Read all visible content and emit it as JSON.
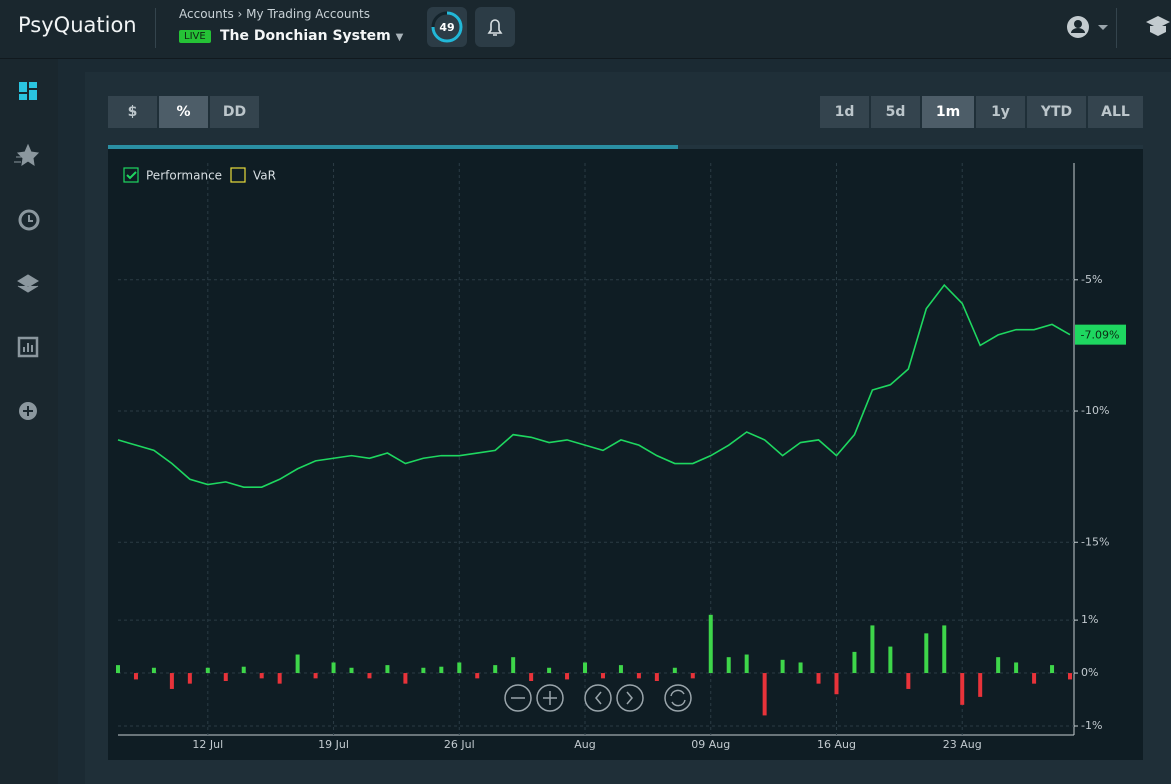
{
  "header": {
    "brand": "PsyQuation",
    "breadcrumb": [
      "Accounts",
      "My Trading Accounts"
    ],
    "status": "LIVE",
    "account": "The Donchian System",
    "score": 49
  },
  "toolbar": {
    "units": [
      "$",
      "%",
      "DD"
    ],
    "active_unit": "%",
    "ranges": [
      "1d",
      "5d",
      "1m",
      "1y",
      "YTD",
      "ALL"
    ],
    "active_range": "1m"
  },
  "chart_data": [
    {
      "type": "line",
      "grid": true,
      "series": [
        {
          "name": "Performance",
          "color": "#1ed760",
          "checked": true,
          "values": [
            -11.1,
            -11.3,
            -11.5,
            -12.0,
            -12.6,
            -12.8,
            -12.7,
            -12.9,
            -12.9,
            -12.6,
            -12.2,
            -11.9,
            -11.8,
            -11.7,
            -11.8,
            -11.6,
            -12.0,
            -11.8,
            -11.7,
            -11.7,
            -11.6,
            -11.5,
            -10.9,
            -11.0,
            -11.2,
            -11.1,
            -11.3,
            -11.5,
            -11.1,
            -11.3,
            -11.7,
            -12.0,
            -12.0,
            -11.7,
            -11.3,
            -10.8,
            -11.1,
            -11.7,
            -11.2,
            -11.1,
            -11.7,
            -10.9,
            -9.2,
            -9.0,
            -8.4,
            -6.1,
            -5.2,
            -5.9,
            -7.5,
            -7.1,
            -6.9,
            -6.9,
            -6.7,
            -7.09
          ],
          "value_labels": [
            null,
            null,
            null,
            null,
            null,
            null,
            null,
            null,
            null,
            null,
            null,
            null,
            null,
            null,
            null,
            null,
            null,
            null,
            null,
            null,
            null,
            null,
            null,
            null,
            null,
            null,
            null,
            null,
            null,
            null,
            null,
            null,
            null,
            null,
            null,
            null,
            null,
            null,
            null,
            null,
            null,
            null,
            null,
            null,
            null,
            null,
            null,
            null,
            null,
            null,
            null,
            null,
            null,
            "-7.09%"
          ]
        },
        {
          "name": "VaR",
          "color": "#e8dc3c",
          "checked": false
        }
      ],
      "ylim": [
        -17.2,
        -0.55
      ],
      "yticks": [
        {
          "value": -5,
          "label": "-5%"
        },
        {
          "value": -10,
          "label": "-10%"
        },
        {
          "value": -15,
          "label": "-15%"
        }
      ]
    },
    {
      "type": "bar",
      "grid": true,
      "up_color": "#3ed64a",
      "down_color": "#e8333a",
      "categories": [
        null,
        null,
        null,
        null,
        null,
        "12 Jul",
        null,
        null,
        null,
        null,
        null,
        null,
        "19 Jul",
        null,
        null,
        null,
        null,
        null,
        null,
        "26 Jul",
        null,
        null,
        null,
        null,
        null,
        null,
        "Aug",
        null,
        null,
        null,
        null,
        null,
        null,
        "09 Aug",
        null,
        null,
        null,
        null,
        null,
        null,
        "16 Aug",
        null,
        null,
        null,
        null,
        null,
        null,
        "23 Aug",
        null,
        null,
        null,
        null,
        null,
        null
      ],
      "values": [
        0.15,
        -0.12,
        0.1,
        -0.3,
        -0.2,
        0.1,
        -0.15,
        0.12,
        -0.1,
        -0.2,
        0.35,
        -0.1,
        0.2,
        0.1,
        -0.1,
        0.15,
        -0.2,
        0.1,
        0.12,
        0.2,
        -0.1,
        0.15,
        0.3,
        -0.15,
        0.1,
        -0.12,
        0.2,
        -0.1,
        0.15,
        -0.1,
        -0.15,
        0.1,
        -0.1,
        1.1,
        0.3,
        0.35,
        -0.8,
        0.25,
        0.2,
        -0.2,
        -0.4,
        0.4,
        0.9,
        0.5,
        -0.3,
        0.75,
        0.9,
        -0.6,
        -0.45,
        0.3,
        0.2,
        -0.2,
        0.15,
        -0.12
      ],
      "ylim": [
        -1.17,
        1.38
      ],
      "yticks": [
        {
          "value": 1,
          "label": "1%"
        },
        {
          "value": 0,
          "label": "0%"
        },
        {
          "value": -1,
          "label": "-1%"
        }
      ]
    }
  ]
}
